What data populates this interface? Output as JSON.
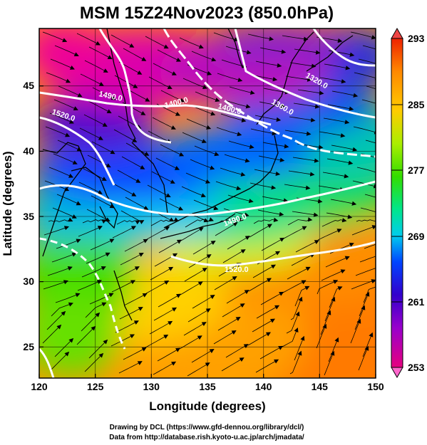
{
  "title": "MSM 15Z24Nov2023 (850.0hPa)",
  "xlabel": "Longitude (degrees)",
  "ylabel": "Latitude  (degrees)",
  "x_ticks": [
    "120",
    "125",
    "130",
    "135",
    "140",
    "145",
    "150"
  ],
  "y_ticks": [
    "25",
    "30",
    "35",
    "40",
    "45"
  ],
  "colorbar": {
    "labels": [
      "293",
      "285",
      "277",
      "269",
      "261",
      "253"
    ],
    "min": 253,
    "max": 293,
    "colors": [
      "#e6007f",
      "#9900cc",
      "#3300cc",
      "#0044ff",
      "#00ccee",
      "#00e68c",
      "#33dd00",
      "#aaee00",
      "#ffcc00",
      "#ff8800",
      "#ee2200"
    ]
  },
  "contour_labels": [
    "1490.0",
    "1520.0",
    "1400.0",
    "1400.0",
    "1360.0",
    "1320.0",
    "1490.0",
    "1520.0"
  ],
  "credits": {
    "line1": "Drawing by DCL (https://www.gfd-dennou.org/library/dcl/)",
    "line2": "Data from http://database.rish.kyoto-u.ac.jp/arch/jmadata/"
  },
  "map": {
    "lon_range": [
      120,
      150
    ],
    "lat_range": [
      22.4,
      47.6
    ],
    "field": "temperature (K)",
    "contours": "geopotential height (m)",
    "vectors": "wind streamlines"
  }
}
